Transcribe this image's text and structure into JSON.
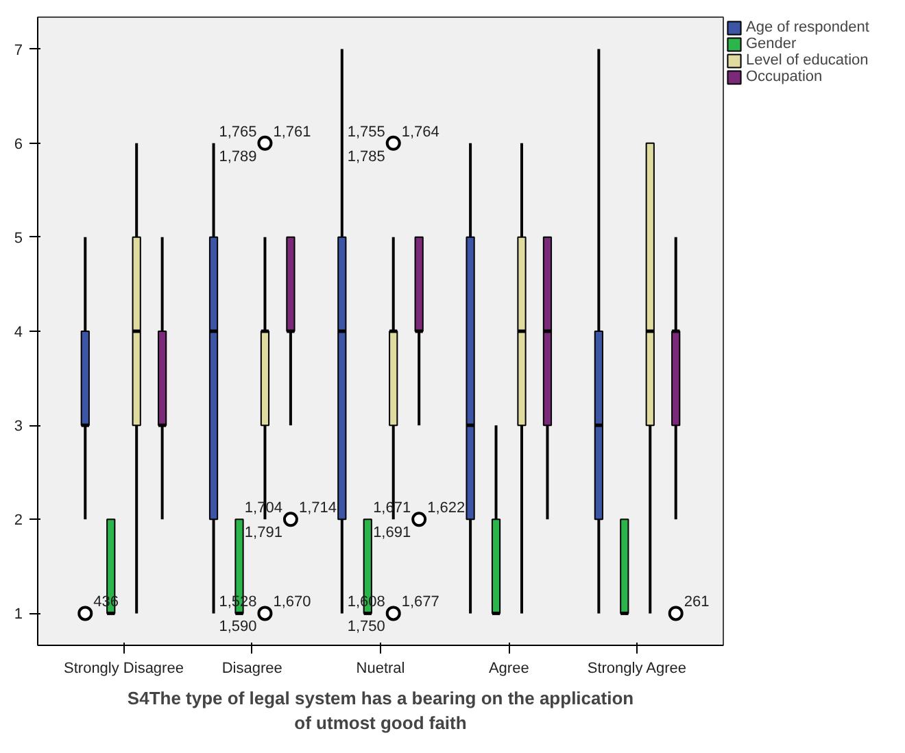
{
  "chart_data": {
    "type": "box",
    "xlabel": "S4The type of legal system has a bearing on the application of utmost good faith",
    "categories": [
      "Strongly Disagree",
      "Disagree",
      "Nuetral",
      "Agree",
      "Strongly Agree"
    ],
    "ylim": [
      0.66,
      7.34
    ],
    "yticks": [
      1,
      2,
      3,
      4,
      5,
      6,
      7
    ],
    "grid": false,
    "legend": "right",
    "series": [
      {
        "name": "Age of respondent",
        "color": "#3d55a5",
        "boxes": [
          {
            "low": 2,
            "q1": 3,
            "median": 3,
            "q3": 4,
            "high": 5,
            "outliers": [
              1
            ]
          },
          {
            "low": 1,
            "q1": 2,
            "median": 4,
            "q3": 5,
            "high": 6
          },
          {
            "low": 1,
            "q1": 2,
            "median": 4,
            "q3": 5,
            "high": 7
          },
          {
            "low": 1,
            "q1": 2,
            "median": 3,
            "q3": 5,
            "high": 6
          },
          {
            "low": 1,
            "q1": 2,
            "median": 3,
            "q3": 4,
            "high": 7
          }
        ]
      },
      {
        "name": "Gender",
        "color": "#2bb54a",
        "boxes": [
          {
            "low": 1,
            "q1": 1,
            "median": 1,
            "q3": 2,
            "high": 2
          },
          {
            "low": 1,
            "q1": 1,
            "median": 1,
            "q3": 2,
            "high": 2
          },
          {
            "low": 1,
            "q1": 1,
            "median": 1,
            "q3": 2,
            "high": 2
          },
          {
            "low": 1,
            "q1": 1,
            "median": 1,
            "q3": 2,
            "high": 3
          },
          {
            "low": 1,
            "q1": 1,
            "median": 1,
            "q3": 2,
            "high": 2
          }
        ]
      },
      {
        "name": "Level of education",
        "color": "#e0dca0",
        "boxes": [
          {
            "low": 1,
            "q1": 3,
            "median": 4,
            "q3": 5,
            "high": 6
          },
          {
            "low": 2,
            "q1": 3,
            "median": 4,
            "q3": 4,
            "high": 5,
            "outliers": [
              6,
              1
            ]
          },
          {
            "low": 2,
            "q1": 3,
            "median": 4,
            "q3": 4,
            "high": 5,
            "outliers": [
              6,
              1
            ]
          },
          {
            "low": 1,
            "q1": 3,
            "median": 4,
            "q3": 5,
            "high": 6
          },
          {
            "low": 1,
            "q1": 3,
            "median": 4,
            "q3": 6,
            "high": 6
          }
        ]
      },
      {
        "name": "Occupation",
        "color": "#7b2a7a",
        "boxes": [
          {
            "low": 2,
            "q1": 3,
            "median": 3,
            "q3": 4,
            "high": 5
          },
          {
            "low": 3,
            "q1": 4,
            "median": 4,
            "q3": 5,
            "high": 5,
            "outliers": [
              2
            ]
          },
          {
            "low": 3,
            "q1": 4,
            "median": 4,
            "q3": 5,
            "high": 5,
            "outliers": [
              2
            ]
          },
          {
            "low": 2,
            "q1": 3,
            "median": 4,
            "q3": 5,
            "high": 5
          },
          {
            "low": 2,
            "q1": 3,
            "median": 4,
            "q3": 4,
            "high": 5,
            "outliers": [
              1
            ]
          }
        ]
      }
    ],
    "annotations": [
      "436",
      "1,761",
      "1,789",
      "1,765",
      "1,670",
      "1,590",
      "1,528",
      "1,714",
      "1,791",
      "1,704",
      "1,764",
      "1,785",
      "1,755",
      "1,677",
      "1,750",
      "1,608",
      "1,622",
      "1,691",
      "1,671",
      "261"
    ]
  }
}
